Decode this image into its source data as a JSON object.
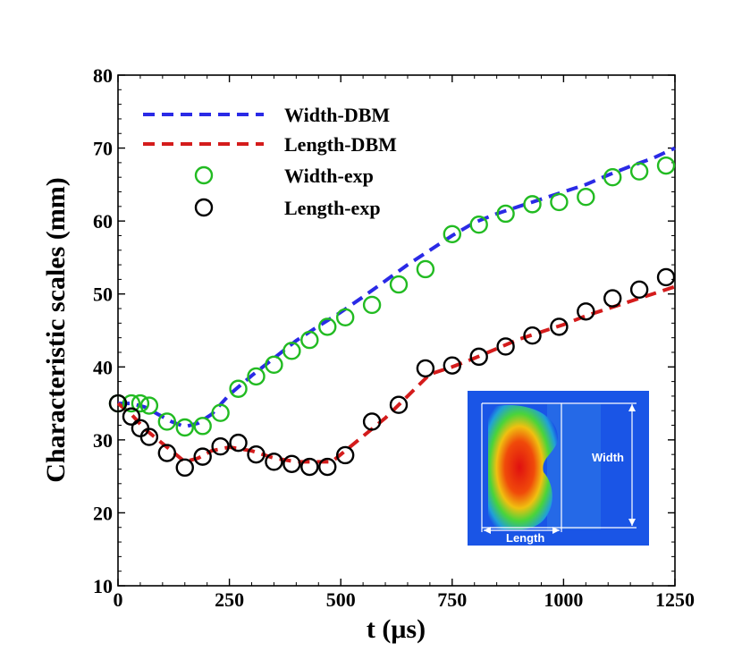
{
  "chart_data": {
    "type": "line",
    "xlabel": "t (μs)",
    "ylabel": "Characteristic scales (mm)",
    "xlim": [
      0,
      1250
    ],
    "ylim": [
      10,
      80
    ],
    "xticks": [
      0,
      250,
      500,
      750,
      1000,
      1250
    ],
    "yticks": [
      10,
      20,
      30,
      40,
      50,
      60,
      70,
      80
    ],
    "grid": false,
    "legend_position": "top-left",
    "series": [
      {
        "name": "Width-DBM",
        "style": "dashed-line",
        "color": "#2a2ae6",
        "x": [
          0,
          30,
          60,
          90,
          120,
          150,
          180,
          210,
          250,
          300,
          350,
          400,
          450,
          500,
          550,
          600,
          650,
          700,
          750,
          800,
          850,
          900,
          950,
          1000,
          1050,
          1100,
          1150,
          1200,
          1250
        ],
        "y": [
          35,
          35,
          34.5,
          33.5,
          32.5,
          31.8,
          32.3,
          33.5,
          36.2,
          38.8,
          41.2,
          43.6,
          45.6,
          47.5,
          49.6,
          51.8,
          54.0,
          56.0,
          58.0,
          59.8,
          61.0,
          62.0,
          63.0,
          64.0,
          65.0,
          66.3,
          67.5,
          68.6,
          70.0
        ]
      },
      {
        "name": "Length-DBM",
        "style": "dashed-line",
        "color": "#d41c1c",
        "x": [
          0,
          30,
          60,
          90,
          120,
          150,
          180,
          210,
          250,
          300,
          350,
          400,
          450,
          480,
          500,
          550,
          600,
          650,
          700,
          750,
          800,
          850,
          900,
          950,
          1000,
          1050,
          1100,
          1150,
          1200,
          1250
        ],
        "y": [
          35,
          33.5,
          31.5,
          30,
          28.5,
          27,
          27.5,
          28.5,
          29,
          28.5,
          27.5,
          27,
          27,
          27,
          28,
          30.5,
          33,
          36,
          39,
          40,
          41.2,
          42.5,
          43.8,
          44.8,
          45.8,
          47,
          48,
          49,
          50,
          51
        ]
      },
      {
        "name": "Width-exp",
        "style": "open-circle",
        "color": "#22bb22",
        "x": [
          0,
          30,
          50,
          70,
          110,
          150,
          190,
          230,
          270,
          310,
          350,
          390,
          430,
          470,
          510,
          570,
          630,
          690,
          750,
          810,
          870,
          930,
          990,
          1050,
          1110,
          1170,
          1230
        ],
        "y": [
          35,
          35,
          35,
          34.7,
          32.5,
          31.7,
          31.9,
          33.7,
          37,
          38.7,
          40.3,
          42.2,
          43.7,
          45.5,
          46.8,
          48.5,
          51.3,
          53.4,
          58.2,
          59.5,
          61,
          62.3,
          62.6,
          63.3,
          66,
          66.8,
          67.6
        ]
      },
      {
        "name": "Length-exp",
        "style": "open-circle",
        "color": "#000000",
        "x": [
          0,
          30,
          50,
          70,
          110,
          150,
          190,
          230,
          270,
          310,
          350,
          390,
          430,
          470,
          510,
          570,
          630,
          690,
          750,
          810,
          870,
          930,
          990,
          1050,
          1110,
          1170,
          1230
        ],
        "y": [
          35,
          33.2,
          31.6,
          30.4,
          28.2,
          26.2,
          27.7,
          29.1,
          29.6,
          28,
          27,
          26.7,
          26.3,
          26.3,
          27.9,
          32.5,
          34.8,
          39.8,
          40.2,
          41.4,
          42.8,
          44.3,
          45.5,
          47.6,
          49.4,
          50.6,
          52.3
        ]
      }
    ],
    "inset": {
      "labels": {
        "width": "Width",
        "length": "Length"
      },
      "background": "#1a55e6"
    }
  }
}
